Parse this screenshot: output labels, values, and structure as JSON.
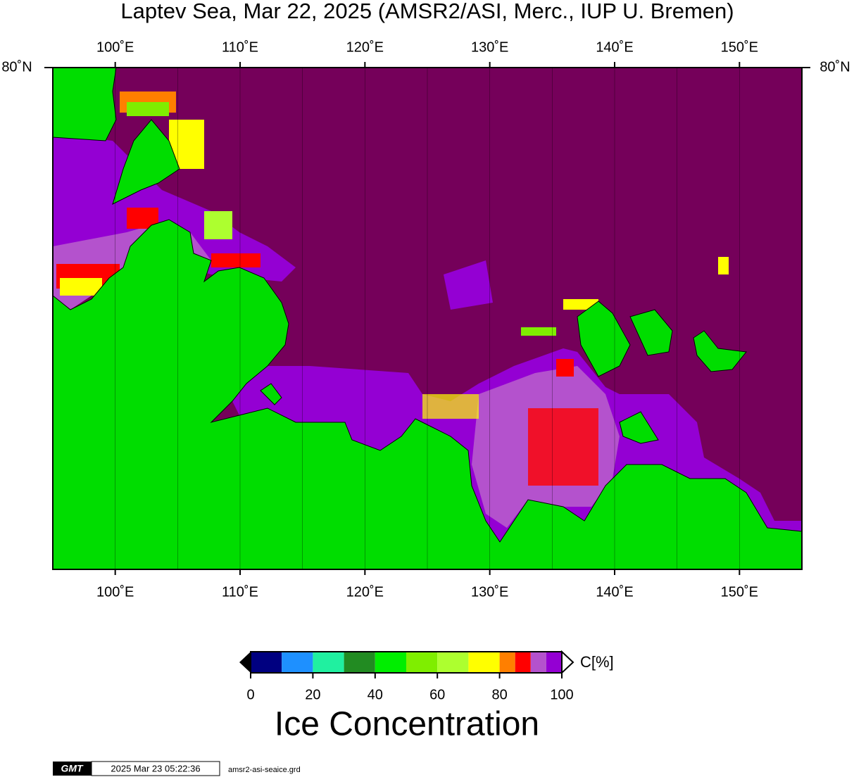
{
  "title": "Laptev Sea, Mar 22, 2025 (AMSR2/ASI, Merc., IUP U. Bremen)",
  "map": {
    "lonlim": [
      95,
      155
    ],
    "lonticks": [
      {
        "value": 100,
        "label": "100˚E"
      },
      {
        "value": 110,
        "label": "110˚E"
      },
      {
        "value": 120,
        "label": "120˚E"
      },
      {
        "value": 130,
        "label": "130˚E"
      },
      {
        "value": 140,
        "label": "140˚E"
      },
      {
        "value": 150,
        "label": "150˚E"
      }
    ],
    "grid_lons": [
      100,
      105,
      110,
      115,
      120,
      125,
      130,
      135,
      140,
      145,
      150
    ],
    "lat_label": "80˚N"
  },
  "colorbar": {
    "lim": [
      0,
      100
    ],
    "ticks": [
      0,
      20,
      40,
      60,
      80,
      100
    ],
    "bins": [
      0,
      10,
      20,
      30,
      40,
      50,
      60,
      70,
      80,
      85,
      90,
      95,
      100
    ],
    "colors": [
      "#000080",
      "#1e90ff",
      "#20f0a0",
      "#228b22",
      "#00ee00",
      "#7fee00",
      "#adff2f",
      "#ffff00",
      "#ff7f00",
      "#ff0000",
      "#b452cd",
      "#9400d3"
    ],
    "unit": "C[%]",
    "label": "Ice Concentration"
  },
  "footer": {
    "logo": "GMT",
    "timestamp": "2025 Mar 23 05:22:36",
    "file": "amsr2-asi-seaice.grd"
  }
}
